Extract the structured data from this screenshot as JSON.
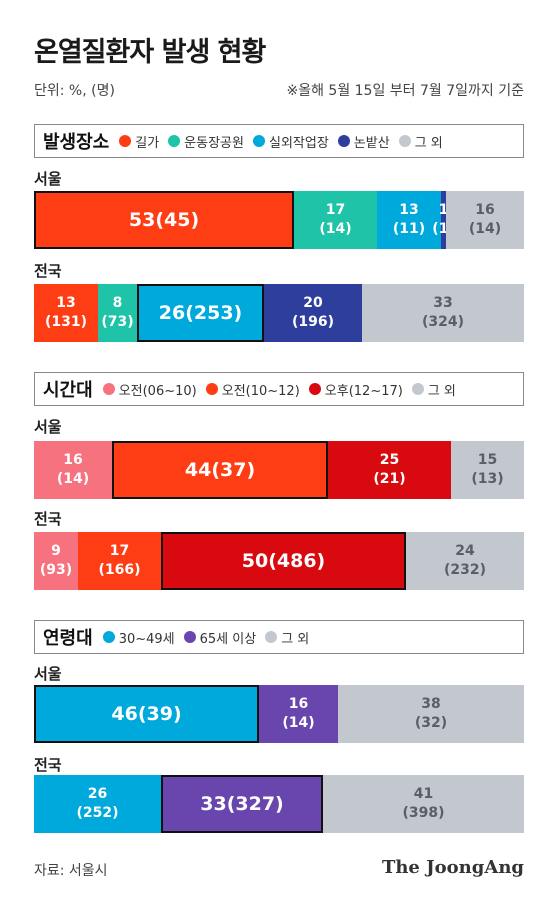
{
  "header": {
    "title": "온열질환자 발생 현황",
    "unit": "단위: %, (명)",
    "period": "※올해 5월 15일 부터 7월 7일까지 기준"
  },
  "colors": {
    "road": "#ff3d14",
    "park": "#1fc3a7",
    "workplace": "#00a9db",
    "field": "#2d3e9c",
    "other": "#c3c8ce",
    "am_early": "#f7727f",
    "am_late": "#ff3d14",
    "pm": "#d80a10",
    "age_30_49": "#00a9db",
    "age_65": "#6846ae"
  },
  "chart_data": [
    {
      "type": "bar",
      "stacked": "horizontal-100",
      "title": "발생장소",
      "categories": [
        "서울",
        "전국"
      ],
      "series": [
        {
          "name": "길가",
          "color_key": "road",
          "values": [
            53,
            13
          ],
          "counts": [
            45,
            131
          ]
        },
        {
          "name": "운동장공원",
          "color_key": "park",
          "values": [
            17,
            8
          ],
          "counts": [
            14,
            73
          ]
        },
        {
          "name": "실외작업장",
          "color_key": "workplace",
          "values": [
            13,
            26
          ],
          "counts": [
            11,
            253
          ]
        },
        {
          "name": "논밭산",
          "color_key": "field",
          "values": [
            1,
            20
          ],
          "counts": [
            1,
            196
          ]
        },
        {
          "name": "그 외",
          "color_key": "other",
          "values": [
            16,
            33
          ],
          "counts": [
            14,
            324
          ]
        }
      ],
      "highlight": [
        0,
        2
      ]
    },
    {
      "type": "bar",
      "stacked": "horizontal-100",
      "title": "시간대",
      "categories": [
        "서울",
        "전국"
      ],
      "series": [
        {
          "name": "오전(06~10)",
          "color_key": "am_early",
          "values": [
            16,
            9
          ],
          "counts": [
            14,
            93
          ]
        },
        {
          "name": "오전(10~12)",
          "color_key": "am_late",
          "values": [
            44,
            17
          ],
          "counts": [
            37,
            166
          ]
        },
        {
          "name": "오후(12~17)",
          "color_key": "pm",
          "values": [
            25,
            50
          ],
          "counts": [
            21,
            486
          ]
        },
        {
          "name": "그 외",
          "color_key": "other",
          "values": [
            15,
            24
          ],
          "counts": [
            13,
            232
          ]
        }
      ],
      "highlight": [
        1,
        2
      ]
    },
    {
      "type": "bar",
      "stacked": "horizontal-100",
      "title": "연령대",
      "categories": [
        "서울",
        "전국"
      ],
      "series": [
        {
          "name": "30~49세",
          "color_key": "age_30_49",
          "values": [
            46,
            26
          ],
          "counts": [
            39,
            252
          ]
        },
        {
          "name": "65세 이상",
          "color_key": "age_65",
          "values": [
            16,
            33
          ],
          "counts": [
            14,
            327
          ]
        },
        {
          "name": "그 외",
          "color_key": "other",
          "values": [
            38,
            41
          ],
          "counts": [
            32,
            398
          ]
        }
      ],
      "highlight": [
        0,
        1
      ]
    }
  ],
  "footer": {
    "source": "자료: 서울시",
    "brand": "The JoongAng"
  }
}
